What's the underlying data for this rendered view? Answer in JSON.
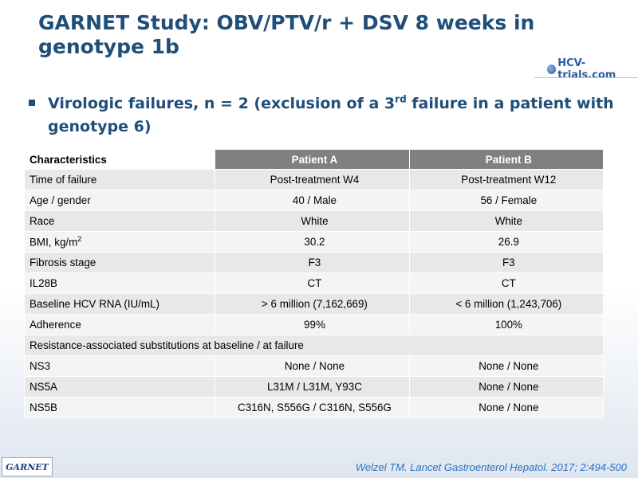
{
  "title": "GARNET Study: OBV/PTV/r + DSV 8 weeks in genotype 1b",
  "logo": {
    "text": "HCV-trials.com",
    "icon": "hcv-trials-logo-icon"
  },
  "bullet": {
    "text_before": "Virologic failures, n = 2 (exclusion of a 3",
    "superscript": "rd",
    "text_after": " failure in a patient with genotype 6)"
  },
  "table": {
    "headers": [
      "Characteristics",
      "Patient A",
      "Patient B"
    ],
    "rows": [
      {
        "label": "Time of failure",
        "a": "Post-treatment W4",
        "b": "Post-treatment W12"
      },
      {
        "label": "Age / gender",
        "a": "40 / Male",
        "b": "56 / Female"
      },
      {
        "label": "Race",
        "a": "White",
        "b": "White"
      },
      {
        "label": "BMI, kg/m",
        "label_sup": "2",
        "a": "30.2",
        "b": "26.9"
      },
      {
        "label": "Fibrosis stage",
        "a": "F3",
        "b": "F3"
      },
      {
        "label": "IL28B",
        "a": "CT",
        "b": "CT"
      },
      {
        "label": "Baseline HCV RNA (IU/mL)",
        "a": "> 6 million (7,162,669)",
        "b": "< 6 million (1,243,706)"
      },
      {
        "label": "Adherence",
        "a": "99%",
        "b": "100%"
      }
    ],
    "section_label": "Resistance-associated substitutions at baseline / at failure",
    "sub_rows": [
      {
        "label": "NS3",
        "a": "None / None",
        "b": "None / None"
      },
      {
        "label": "NS5A",
        "a": "L31M / L31M, Y93C",
        "b": "None / None"
      },
      {
        "label": "NS5B",
        "a": "C316N, S556G / C316N, S556G",
        "b": "None / None"
      }
    ]
  },
  "footer": {
    "logo_text": "GARNET",
    "citation": "Welzel TM. Lancet Gastroenterol Hepatol. 2017; 2:494-500"
  }
}
